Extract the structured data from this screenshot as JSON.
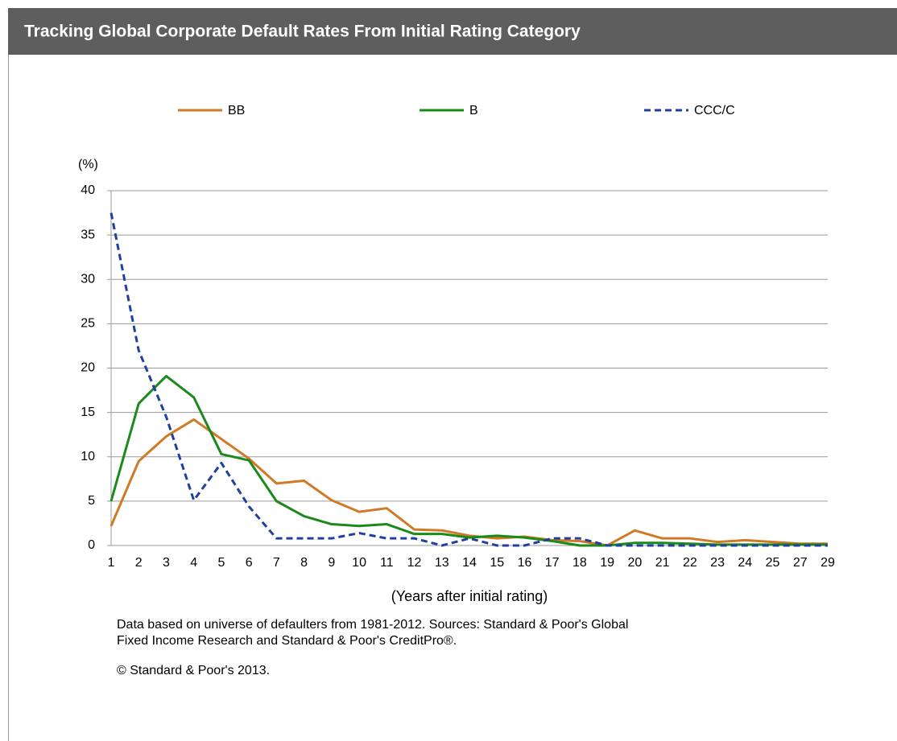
{
  "chart_data": {
    "type": "line",
    "title": "Tracking Global Corporate Default Rates From Initial Rating Category",
    "y_label": "(%)",
    "x_label": "(Years after initial rating)",
    "notes": [
      "Data based on universe of defaulters from 1981-2012. Sources: Standard & Poor's Global",
      "Fixed Income Research and Standard & Poor's CreditPro®."
    ],
    "copyright": "© Standard & Poor's 2013.",
    "categories": [
      "1",
      "2",
      "3",
      "4",
      "5",
      "6",
      "7",
      "8",
      "9",
      "10",
      "11",
      "12",
      "13",
      "14",
      "15",
      "16",
      "17",
      "18",
      "19",
      "20",
      "21",
      "22",
      "23",
      "24",
      "25",
      "27",
      "29"
    ],
    "series": [
      {
        "name": "BB",
        "color": "#d07a26",
        "dash": false,
        "values": [
          2.2,
          9.5,
          12.3,
          14.2,
          12.0,
          9.8,
          7.0,
          7.3,
          5.1,
          3.8,
          4.2,
          1.8,
          1.7,
          1.1,
          0.8,
          1.0,
          0.6,
          0.5,
          0.0,
          1.7,
          0.8,
          0.8,
          0.4,
          0.6,
          0.4,
          0.2,
          0.2
        ]
      },
      {
        "name": "B",
        "color": "#1a8a1a",
        "dash": false,
        "values": [
          5.0,
          16.0,
          19.1,
          16.7,
          10.3,
          9.6,
          5.0,
          3.3,
          2.4,
          2.2,
          2.4,
          1.3,
          1.3,
          0.9,
          1.1,
          0.9,
          0.5,
          0.0,
          0.0,
          0.3,
          0.3,
          0.2,
          0.1,
          0.1,
          0.1,
          0.1,
          0.1
        ]
      },
      {
        "name": "CCC/C",
        "color": "#2040a0",
        "dash": true,
        "values": [
          37.5,
          22.0,
          14.5,
          5.1,
          9.3,
          4.4,
          0.8,
          0.8,
          0.8,
          1.4,
          0.8,
          0.8,
          0.0,
          0.8,
          0.0,
          0.0,
          0.8,
          0.8,
          0.0,
          0.0,
          0.0,
          0.0,
          0.0,
          0.0,
          0.0,
          0.0,
          0.0
        ]
      }
    ],
    "ylim": [
      0,
      40
    ],
    "yticks": [
      0,
      5,
      10,
      15,
      20,
      25,
      30,
      35,
      40
    ],
    "grid": true,
    "legend": "top"
  }
}
